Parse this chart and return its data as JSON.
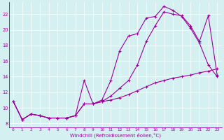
{
  "xlabel": "Windchill (Refroidissement éolien,°C)",
  "background_color": "#d4f0f0",
  "line_color": "#990099",
  "xlim": [
    -0.5,
    23.5
  ],
  "ylim": [
    7.5,
    23.5
  ],
  "yticks": [
    8,
    10,
    12,
    14,
    16,
    18,
    20,
    22
  ],
  "xticks": [
    0,
    1,
    2,
    3,
    4,
    5,
    6,
    7,
    8,
    9,
    10,
    11,
    12,
    13,
    14,
    15,
    16,
    17,
    18,
    19,
    20,
    21,
    22,
    23
  ],
  "line1_x": [
    0,
    1,
    2,
    3,
    4,
    5,
    6,
    7,
    8,
    9,
    10,
    11,
    12,
    13,
    14,
    15,
    16,
    17,
    18,
    19,
    20,
    21,
    22,
    23
  ],
  "line1_y": [
    10.8,
    8.5,
    9.2,
    9.0,
    8.7,
    8.7,
    8.7,
    9.0,
    13.5,
    10.5,
    11.0,
    13.5,
    17.3,
    19.2,
    19.5,
    21.5,
    21.7,
    23.0,
    22.5,
    21.7,
    20.2,
    18.3,
    15.5,
    14.0
  ],
  "line2_x": [
    0,
    1,
    2,
    3,
    4,
    5,
    6,
    7,
    8,
    9,
    10,
    11,
    12,
    13,
    14,
    15,
    16,
    17,
    18,
    19,
    20,
    21,
    22,
    23
  ],
  "line2_y": [
    10.8,
    8.5,
    9.2,
    9.0,
    8.7,
    8.7,
    8.7,
    9.0,
    10.5,
    10.5,
    10.8,
    11.5,
    12.5,
    13.5,
    15.5,
    18.5,
    20.5,
    22.3,
    22.0,
    21.8,
    20.5,
    18.5,
    21.8,
    14.2
  ],
  "line3_x": [
    0,
    1,
    2,
    3,
    4,
    5,
    6,
    7,
    8,
    9,
    10,
    11,
    12,
    13,
    14,
    15,
    16,
    17,
    18,
    19,
    20,
    21,
    22,
    23
  ],
  "line3_y": [
    10.8,
    8.5,
    9.2,
    9.0,
    8.7,
    8.7,
    8.7,
    9.0,
    10.5,
    10.5,
    10.8,
    11.0,
    11.3,
    11.7,
    12.2,
    12.7,
    13.2,
    13.5,
    13.8,
    14.0,
    14.2,
    14.5,
    14.7,
    15.0
  ]
}
